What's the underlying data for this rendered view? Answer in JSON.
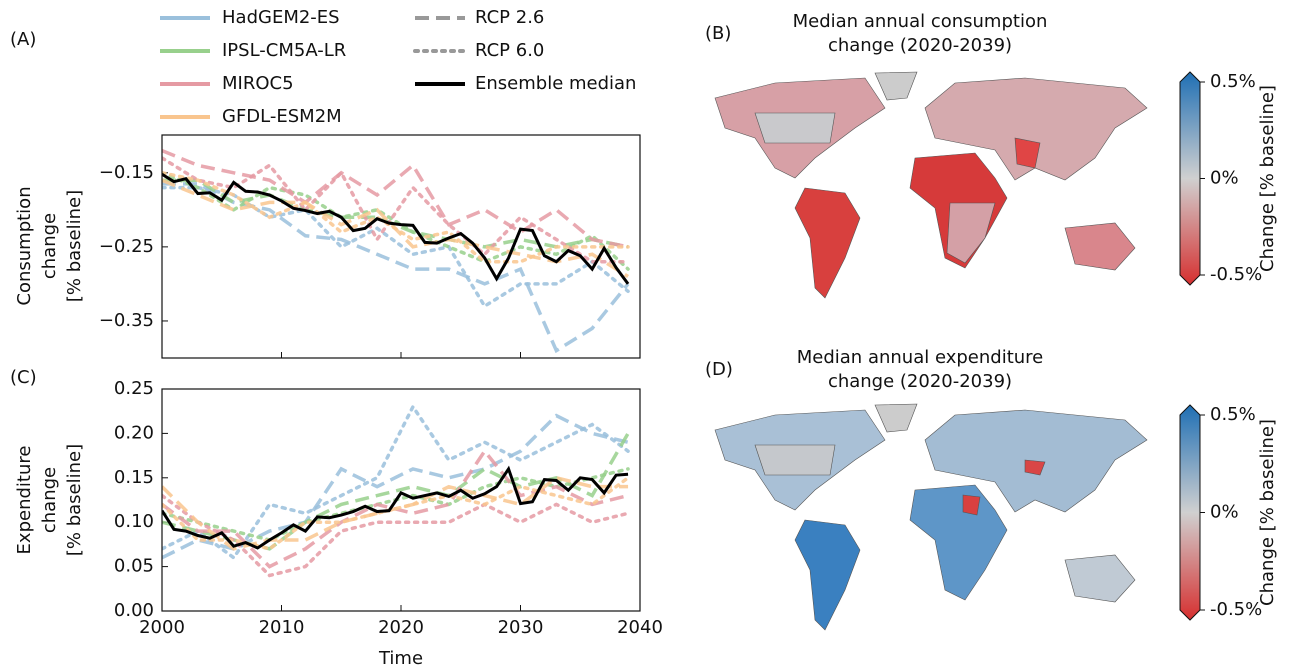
{
  "chart_data": [
    {
      "type": "line",
      "label": "(A)",
      "ylabel": [
        "Consumption",
        "change",
        "[% baseline]"
      ],
      "xlim": [
        2000,
        2040
      ],
      "xticks": [
        2000,
        2010,
        2020,
        2030,
        2040
      ],
      "xticklabels": false,
      "ylim": [
        -0.4,
        -0.099
      ],
      "yticks": [
        {
          "value": -0.15,
          "label": "−0.15"
        },
        {
          "value": -0.25,
          "label": "−0.25"
        },
        {
          "value": -0.35,
          "label": "−0.35"
        }
      ],
      "x": [
        2000,
        2003,
        2006,
        2009,
        2012,
        2015,
        2018,
        2021,
        2024,
        2027,
        2030,
        2033,
        2036,
        2039
      ],
      "series": [
        {
          "name": "HadGEM2-ES",
          "scenario": "RCP 2.6",
          "dash": "dashed",
          "color": "#9ac0dc",
          "values": [
            -0.165,
            -0.165,
            -0.19,
            -0.2,
            -0.235,
            -0.24,
            -0.26,
            -0.28,
            -0.28,
            -0.3,
            -0.28,
            -0.39,
            -0.36,
            -0.3
          ]
        },
        {
          "name": "HadGEM2-ES",
          "scenario": "RCP 6.0",
          "dash": "dotted",
          "color": "#9ac0dc",
          "values": [
            -0.17,
            -0.17,
            -0.18,
            -0.21,
            -0.2,
            -0.25,
            -0.225,
            -0.26,
            -0.25,
            -0.33,
            -0.3,
            -0.3,
            -0.27,
            -0.31
          ]
        },
        {
          "name": "IPSL-CM5A-LR",
          "scenario": "RCP 2.6",
          "dash": "dashed",
          "color": "#98d08c",
          "values": [
            -0.16,
            -0.16,
            -0.19,
            -0.18,
            -0.2,
            -0.21,
            -0.21,
            -0.23,
            -0.24,
            -0.25,
            -0.24,
            -0.25,
            -0.24,
            -0.25
          ]
        },
        {
          "name": "IPSL-CM5A-LR",
          "scenario": "RCP 6.0",
          "dash": "dotted",
          "color": "#98d08c",
          "values": [
            -0.15,
            -0.17,
            -0.2,
            -0.17,
            -0.18,
            -0.21,
            -0.2,
            -0.23,
            -0.25,
            -0.27,
            -0.25,
            -0.26,
            -0.235,
            -0.28
          ]
        },
        {
          "name": "MIROC5",
          "scenario": "RCP 2.6",
          "dash": "dashed",
          "color": "#e59aa3",
          "values": [
            -0.12,
            -0.14,
            -0.15,
            -0.16,
            -0.19,
            -0.15,
            -0.18,
            -0.14,
            -0.22,
            -0.2,
            -0.23,
            -0.2,
            -0.24,
            -0.25
          ]
        },
        {
          "name": "MIROC5",
          "scenario": "RCP 6.0",
          "dash": "dotted",
          "color": "#e59aa3",
          "values": [
            -0.13,
            -0.16,
            -0.17,
            -0.14,
            -0.2,
            -0.15,
            -0.24,
            -0.17,
            -0.22,
            -0.26,
            -0.21,
            -0.24,
            -0.27,
            -0.27
          ]
        },
        {
          "name": "GFDL-ESM2M",
          "scenario": "RCP 2.6",
          "dash": "dashed",
          "color": "#f9c58e",
          "values": [
            -0.16,
            -0.18,
            -0.2,
            -0.19,
            -0.19,
            -0.22,
            -0.2,
            -0.25,
            -0.24,
            -0.25,
            -0.26,
            -0.27,
            -0.26,
            -0.29
          ]
        },
        {
          "name": "GFDL-ESM2M",
          "scenario": "RCP 6.0",
          "dash": "dotted",
          "color": "#f9c58e",
          "values": [
            -0.15,
            -0.16,
            -0.18,
            -0.21,
            -0.19,
            -0.23,
            -0.21,
            -0.24,
            -0.23,
            -0.27,
            -0.27,
            -0.25,
            -0.25,
            -0.25
          ]
        }
      ],
      "median": {
        "name": "Ensemble median",
        "color": "#000000",
        "x": [
          2000,
          2001,
          2002,
          2003,
          2004,
          2005,
          2006,
          2007,
          2008,
          2009,
          2010,
          2011,
          2012,
          2013,
          2014,
          2015,
          2016,
          2017,
          2018,
          2019,
          2020,
          2021,
          2022,
          2023,
          2024,
          2025,
          2026,
          2027,
          2028,
          2029,
          2030,
          2031,
          2032,
          2033,
          2034,
          2035,
          2036,
          2037,
          2038,
          2039
        ],
        "values": [
          -0.152,
          -0.162,
          -0.158,
          -0.178,
          -0.177,
          -0.187,
          -0.163,
          -0.175,
          -0.176,
          -0.18,
          -0.188,
          -0.198,
          -0.201,
          -0.205,
          -0.202,
          -0.21,
          -0.228,
          -0.225,
          -0.212,
          -0.218,
          -0.22,
          -0.221,
          -0.244,
          -0.245,
          -0.238,
          -0.232,
          -0.245,
          -0.265,
          -0.293,
          -0.265,
          -0.226,
          -0.228,
          -0.262,
          -0.27,
          -0.255,
          -0.262,
          -0.28,
          -0.252,
          -0.278,
          -0.3
        ]
      }
    },
    {
      "type": "line",
      "label": "(C)",
      "ylabel": [
        "Expenditure",
        "change",
        "[% baseline]"
      ],
      "xlabel": "Time",
      "xlim": [
        2000,
        2040
      ],
      "xticks": [
        2000,
        2010,
        2020,
        2030,
        2040
      ],
      "xticklabels": true,
      "ylim": [
        0,
        0.25
      ],
      "yticks": [
        {
          "value": 0,
          "label": "0.00"
        },
        0.05,
        {
          "value": 0.1,
          "label": "0.10"
        },
        0.15,
        {
          "value": 0.2,
          "label": "0.20"
        },
        0.25
      ],
      "x": [
        2000,
        2003,
        2006,
        2009,
        2012,
        2015,
        2018,
        2021,
        2024,
        2027,
        2030,
        2033,
        2036,
        2039
      ],
      "series": [
        {
          "name": "HadGEM2-ES",
          "scenario": "RCP 2.6",
          "dash": "dashed",
          "color": "#9ac0dc",
          "values": [
            0.06,
            0.08,
            0.07,
            0.09,
            0.1,
            0.16,
            0.14,
            0.16,
            0.15,
            0.16,
            0.18,
            0.22,
            0.2,
            0.19
          ]
        },
        {
          "name": "HadGEM2-ES",
          "scenario": "RCP 6.0",
          "dash": "dotted",
          "color": "#9ac0dc",
          "values": [
            0.07,
            0.09,
            0.06,
            0.12,
            0.11,
            0.13,
            0.15,
            0.23,
            0.17,
            0.19,
            0.17,
            0.19,
            0.21,
            0.18
          ]
        },
        {
          "name": "IPSL-CM5A-LR",
          "scenario": "RCP 2.6",
          "dash": "dashed",
          "color": "#98d08c",
          "values": [
            0.1,
            0.09,
            0.08,
            0.07,
            0.1,
            0.12,
            0.13,
            0.14,
            0.13,
            0.16,
            0.14,
            0.15,
            0.13,
            0.2
          ]
        },
        {
          "name": "IPSL-CM5A-LR",
          "scenario": "RCP 6.0",
          "dash": "dotted",
          "color": "#98d08c",
          "values": [
            0.11,
            0.1,
            0.09,
            0.08,
            0.1,
            0.11,
            0.12,
            0.13,
            0.12,
            0.14,
            0.15,
            0.14,
            0.15,
            0.16
          ]
        },
        {
          "name": "MIROC5",
          "scenario": "RCP 2.6",
          "dash": "dashed",
          "color": "#e59aa3",
          "values": [
            0.12,
            0.09,
            0.09,
            0.05,
            0.07,
            0.1,
            0.12,
            0.11,
            0.12,
            0.18,
            0.13,
            0.14,
            0.12,
            0.13
          ]
        },
        {
          "name": "MIROC5",
          "scenario": "RCP 6.0",
          "dash": "dotted",
          "color": "#e59aa3",
          "values": [
            0.13,
            0.1,
            0.08,
            0.04,
            0.05,
            0.09,
            0.1,
            0.1,
            0.1,
            0.12,
            0.1,
            0.12,
            0.1,
            0.11
          ]
        },
        {
          "name": "GFDL-ESM2M",
          "scenario": "RCP 2.6",
          "dash": "dashed",
          "color": "#f9c58e",
          "values": [
            0.14,
            0.1,
            0.07,
            0.08,
            0.08,
            0.1,
            0.11,
            0.12,
            0.14,
            0.13,
            0.12,
            0.15,
            0.14,
            0.14
          ]
        },
        {
          "name": "GFDL-ESM2M",
          "scenario": "RCP 6.0",
          "dash": "dotted",
          "color": "#f9c58e",
          "values": [
            0.12,
            0.08,
            0.08,
            0.07,
            0.1,
            0.1,
            0.11,
            0.12,
            0.13,
            0.12,
            0.14,
            0.13,
            0.12,
            0.15
          ]
        }
      ],
      "median": {
        "name": "Ensemble median",
        "color": "#000000",
        "x": [
          2000,
          2001,
          2002,
          2003,
          2004,
          2005,
          2006,
          2007,
          2008,
          2009,
          2010,
          2011,
          2012,
          2013,
          2014,
          2015,
          2016,
          2017,
          2018,
          2019,
          2020,
          2021,
          2022,
          2023,
          2024,
          2025,
          2026,
          2027,
          2028,
          2029,
          2030,
          2031,
          2032,
          2033,
          2034,
          2035,
          2036,
          2037,
          2038,
          2039
        ],
        "values": [
          0.113,
          0.092,
          0.09,
          0.085,
          0.082,
          0.088,
          0.073,
          0.077,
          0.071,
          0.08,
          0.088,
          0.097,
          0.09,
          0.106,
          0.105,
          0.108,
          0.112,
          0.118,
          0.112,
          0.113,
          0.133,
          0.127,
          0.13,
          0.133,
          0.129,
          0.136,
          0.127,
          0.132,
          0.14,
          0.16,
          0.121,
          0.123,
          0.148,
          0.147,
          0.136,
          0.15,
          0.148,
          0.133,
          0.153,
          0.154
        ]
      }
    },
    {
      "type": "map",
      "label": "(B)",
      "title": [
        "Median annual consumption",
        "change (2020-2039)"
      ],
      "colors": [
        "#d62f2f",
        "#d0d0d0",
        "#1f6fb4"
      ],
      "cbar_lim": [
        -0.5,
        0.5
      ],
      "cbar_ticks": [
        {
          "value": 0.5,
          "label": "0.5%"
        },
        {
          "value": 0,
          "label": "0%"
        },
        {
          "value": -0.5,
          "label": "-0.5%"
        }
      ],
      "cbar_label": "Change [% baseline]"
    },
    {
      "type": "map",
      "label": "(D)",
      "title": [
        "Median annual expenditure",
        "change (2020-2039)"
      ],
      "colors": [
        "#d62f2f",
        "#d0d0d0",
        "#1f6fb4"
      ],
      "cbar_lim": [
        -0.5,
        0.5
      ],
      "cbar_ticks": [
        {
          "value": 0.5,
          "label": "0.5%"
        },
        {
          "value": 0,
          "label": "0%"
        },
        {
          "value": -0.5,
          "label": "-0.5%"
        }
      ],
      "cbar_label": "Change [% baseline]"
    }
  ]
}
